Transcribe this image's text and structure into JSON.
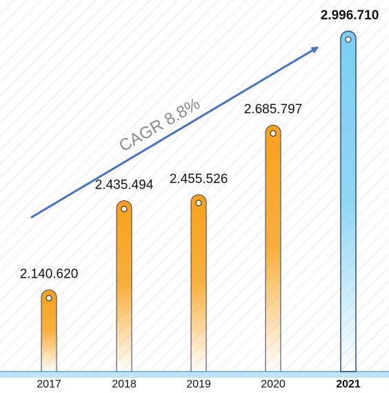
{
  "chart_data": {
    "type": "bar",
    "categories": [
      "2017",
      "2018",
      "2019",
      "2020",
      "2021"
    ],
    "values": [
      2140620,
      2435494,
      2455526,
      2685797,
      2996710
    ],
    "value_labels": [
      "2.140.620",
      "2.435.494",
      "2.455.526",
      "2.685.797",
      "2.996.710"
    ],
    "colors": [
      "#f7a21b",
      "#f7a21b",
      "#f7a21b",
      "#f7a21b",
      "#7ccff2"
    ],
    "ylim": [
      1870000,
      3100000
    ],
    "annotation": "CAGR 8.8%"
  }
}
